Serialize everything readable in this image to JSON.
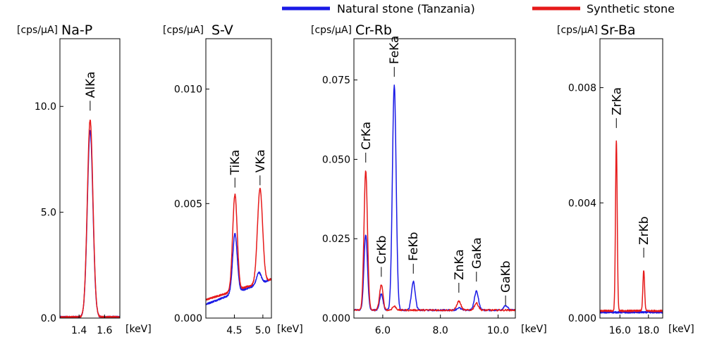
{
  "chart_data": {
    "type": "line",
    "legend": {
      "position": "top",
      "entries": [
        {
          "name": "Natural stone (Tanzania)",
          "color": "#1a1ae6"
        },
        {
          "name": "Synthetic stone",
          "color": "#e61a1a"
        }
      ]
    },
    "panels": [
      {
        "title": "Na-P",
        "ylabel": "[cps/μA]",
        "xlabel": "[keV]",
        "xlim": [
          1.25,
          1.72
        ],
        "ylim": [
          0,
          13.2
        ],
        "xticks": [
          1.4,
          1.6
        ],
        "xtick_labels": [
          "1.4",
          "1.6"
        ],
        "yticks": [
          0,
          5,
          10
        ],
        "ytick_labels": [
          "0.0",
          "5.0",
          "10.0"
        ],
        "series": [
          {
            "name": "Natural stone (Tanzania)",
            "baseline": 0.05,
            "peaks": [
              {
                "x": 1.487,
                "height": 8.8,
                "width": 0.022
              }
            ]
          },
          {
            "name": "Synthetic stone",
            "baseline": 0.05,
            "peaks": [
              {
                "x": 1.487,
                "height": 9.3,
                "width": 0.022
              }
            ]
          }
        ],
        "annotations": [
          {
            "label": "AlKa",
            "x": 1.487,
            "y": 9.8
          }
        ]
      },
      {
        "title": "S-V",
        "ylabel": "[cps/μA]",
        "xlabel": "[keV]",
        "xlim": [
          4.0,
          5.15
        ],
        "ylim": [
          0,
          0.0122
        ],
        "xticks": [
          4.5,
          5.0
        ],
        "xtick_labels": [
          "4.5",
          "5.0"
        ],
        "yticks": [
          0,
          0.005,
          0.01
        ],
        "ytick_labels": [
          "0.000",
          "0.005",
          "0.010"
        ],
        "series": [
          {
            "name": "Natural stone (Tanzania)",
            "baseline": 0.0006,
            "baseline_end": 0.0017,
            "peaks": [
              {
                "x": 4.51,
                "height": 0.0026,
                "width": 0.04
              },
              {
                "x": 4.93,
                "height": 0.0005,
                "width": 0.04
              }
            ]
          },
          {
            "name": "Synthetic stone",
            "baseline": 0.0008,
            "baseline_end": 0.0017,
            "peaks": [
              {
                "x": 4.51,
                "height": 0.0042,
                "width": 0.04
              },
              {
                "x": 4.95,
                "height": 0.0041,
                "width": 0.045
              }
            ]
          }
        ],
        "annotations": [
          {
            "label": "TiKa",
            "x": 4.51,
            "y": 0.0057
          },
          {
            "label": "VKa",
            "x": 4.95,
            "y": 0.0058
          }
        ]
      },
      {
        "title": "Cr-Rb",
        "ylabel": "[cps/μA]",
        "xlabel": "[keV]",
        "xlim": [
          5.0,
          10.6
        ],
        "ylim": [
          0,
          0.088
        ],
        "xticks": [
          6.0,
          8.0,
          10.0
        ],
        "xtick_labels": [
          "6.0",
          "8.0",
          "10.0"
        ],
        "yticks": [
          0,
          0.025,
          0.05,
          0.075
        ],
        "ytick_labels": [
          "0.000",
          "0.025",
          "0.050",
          "0.075"
        ],
        "series": [
          {
            "name": "Natural stone (Tanzania)",
            "baseline": 0.0025,
            "peaks": [
              {
                "x": 5.41,
                "height": 0.024,
                "width": 0.06
              },
              {
                "x": 5.95,
                "height": 0.005,
                "width": 0.06
              },
              {
                "x": 6.4,
                "height": 0.071,
                "width": 0.065
              },
              {
                "x": 7.06,
                "height": 0.009,
                "width": 0.065
              },
              {
                "x": 8.64,
                "height": 0.0007,
                "width": 0.07
              },
              {
                "x": 9.25,
                "height": 0.006,
                "width": 0.07
              },
              {
                "x": 10.26,
                "height": 0.0015,
                "width": 0.07
              }
            ]
          },
          {
            "name": "Synthetic stone",
            "baseline": 0.0025,
            "peaks": [
              {
                "x": 5.41,
                "height": 0.044,
                "width": 0.06
              },
              {
                "x": 5.95,
                "height": 0.008,
                "width": 0.06
              },
              {
                "x": 6.4,
                "height": 0.0012,
                "width": 0.065
              },
              {
                "x": 8.64,
                "height": 0.0028,
                "width": 0.07
              },
              {
                "x": 9.25,
                "height": 0.0022,
                "width": 0.07
              }
            ]
          }
        ],
        "annotations": [
          {
            "label": "CrKa",
            "x": 5.41,
            "y": 0.049
          },
          {
            "label": "CrKb",
            "x": 5.95,
            "y": 0.013
          },
          {
            "label": "FeKa",
            "x": 6.4,
            "y": 0.076
          },
          {
            "label": "FeKb",
            "x": 7.06,
            "y": 0.014
          },
          {
            "label": "ZnKa",
            "x": 8.64,
            "y": 0.008
          },
          {
            "label": "GaKa",
            "x": 9.25,
            "y": 0.0115
          },
          {
            "label": "GaKb",
            "x": 10.26,
            "y": 0.004
          }
        ]
      },
      {
        "title": "Sr-Ba",
        "ylabel": "[cps/μA]",
        "xlabel": "[keV]",
        "xlim": [
          14.6,
          19.0
        ],
        "ylim": [
          0,
          0.0097
        ],
        "xticks": [
          16.0,
          18.0
        ],
        "xtick_labels": [
          "16.0",
          "18.0"
        ],
        "yticks": [
          0,
          0.004,
          0.008
        ],
        "ytick_labels": [
          "0.000",
          "0.004",
          "0.008"
        ],
        "series": [
          {
            "name": "Natural stone (Tanzania)",
            "baseline": 0.0002,
            "peaks": []
          },
          {
            "name": "Synthetic stone",
            "baseline": 0.00025,
            "peaks": [
              {
                "x": 15.75,
                "height": 0.0059,
                "width": 0.06
              },
              {
                "x": 17.67,
                "height": 0.0014,
                "width": 0.06
              }
            ]
          }
        ],
        "annotations": [
          {
            "label": "ZrKa",
            "x": 15.75,
            "y": 0.0066
          },
          {
            "label": "ZrKb",
            "x": 17.67,
            "y": 0.0021
          }
        ]
      }
    ]
  }
}
